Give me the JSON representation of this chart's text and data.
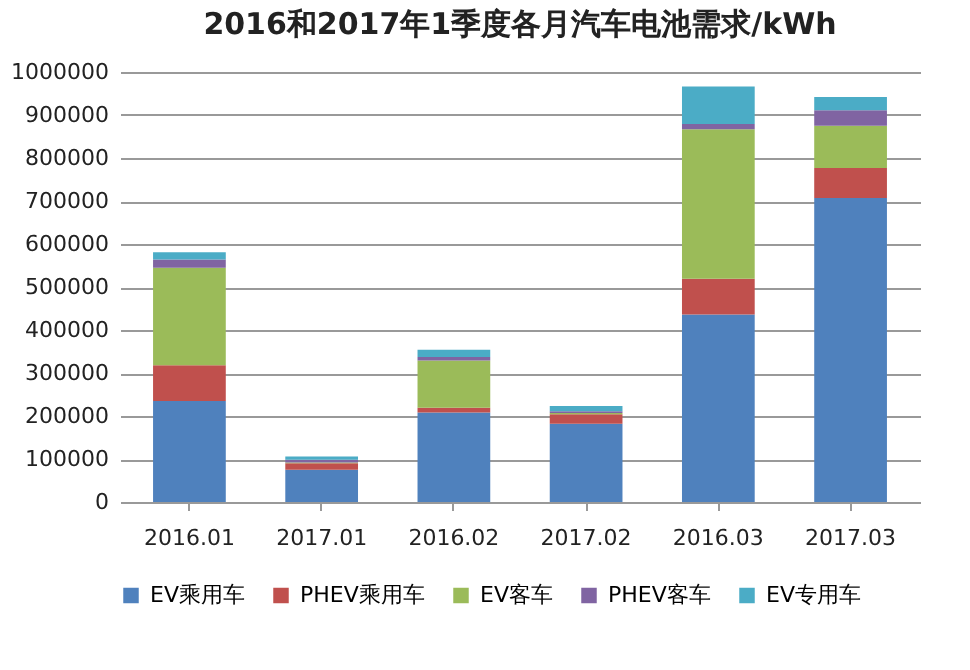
{
  "chart_data": {
    "type": "bar",
    "title": "2016和2017年1季度各月汽车电池需求/kWh",
    "stacked": true,
    "categories": [
      "2016.01",
      "2017.01",
      "2016.02",
      "2017.02",
      "2016.03",
      "2017.03"
    ],
    "series": [
      {
        "name": "EV乘用车",
        "color": "#4f81bd",
        "values": [
          235000,
          75000,
          208000,
          182000,
          436000,
          707000
        ]
      },
      {
        "name": "PHEV乘用车",
        "color": "#c0504d",
        "values": [
          83000,
          15000,
          11000,
          22000,
          83000,
          70000
        ]
      },
      {
        "name": "EV客车",
        "color": "#9bbb59",
        "values": [
          227000,
          2000,
          110000,
          3000,
          348000,
          98000
        ]
      },
      {
        "name": "PHEV客车",
        "color": "#8064a2",
        "values": [
          19000,
          6000,
          8000,
          4000,
          12000,
          36000
        ]
      },
      {
        "name": "EV专用车",
        "color": "#4bacc6",
        "values": [
          17000,
          8000,
          17000,
          12000,
          87000,
          31000
        ]
      }
    ],
    "ylim": [
      0,
      1000000
    ],
    "yticks": [
      0,
      100000,
      200000,
      300000,
      400000,
      500000,
      600000,
      700000,
      800000,
      900000,
      1000000
    ],
    "grid": "y",
    "legend": "bottom"
  }
}
